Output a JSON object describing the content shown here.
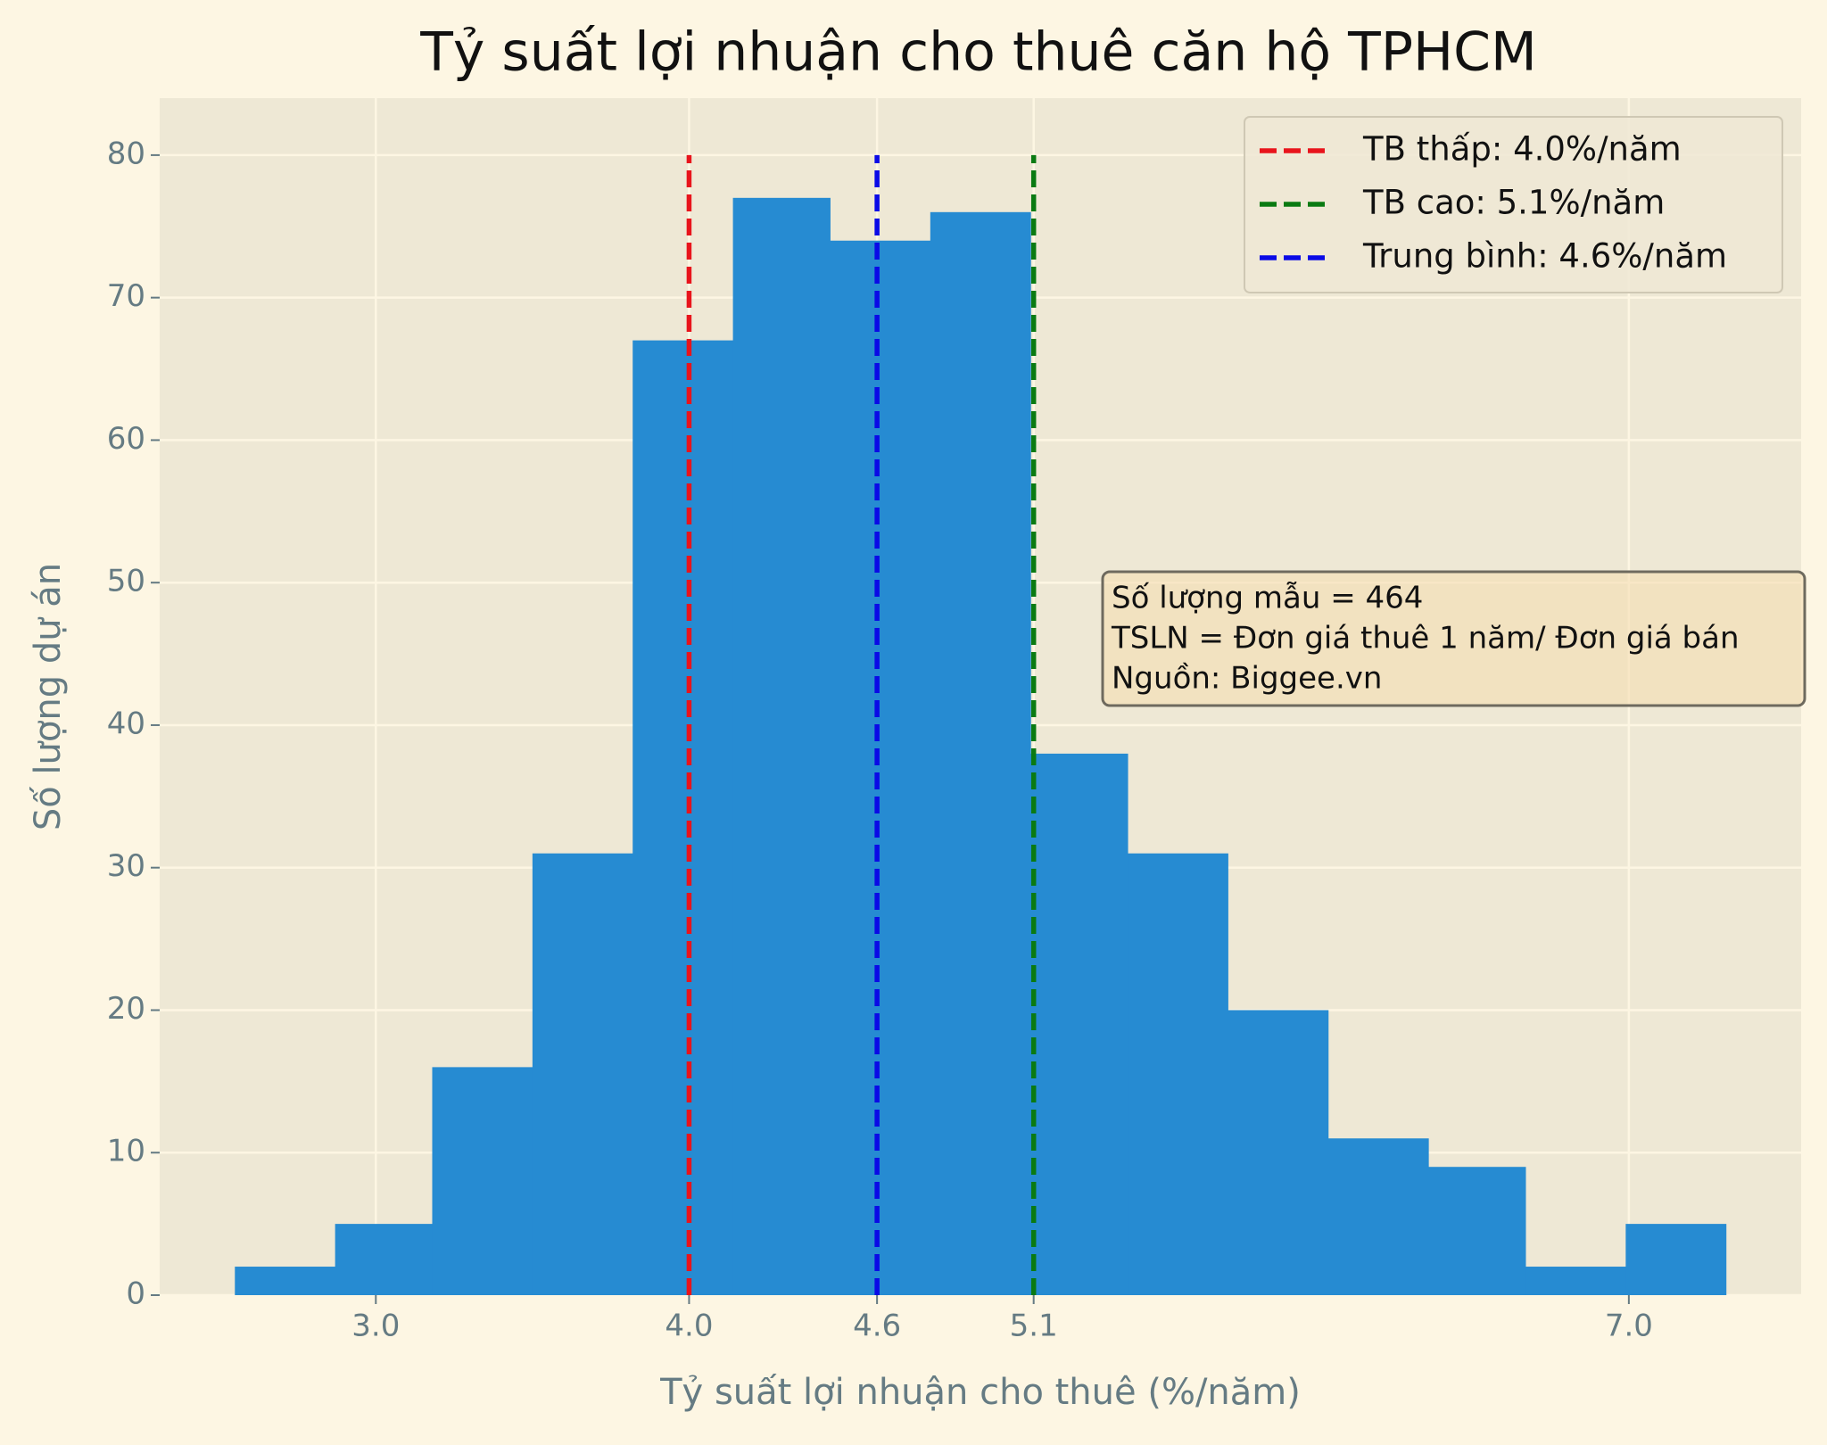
{
  "chart_data": {
    "type": "histogram",
    "title": "Tỷ suất lợi nhuận cho thuê căn hộ TPHCM",
    "xlabel": "Tỷ suất lợi nhuận cho thuê (%/năm)",
    "ylabel": "Số lượng dự án",
    "bins": [
      2.55,
      2.87,
      3.18,
      3.5,
      3.82,
      4.14,
      4.45,
      4.77,
      5.09,
      5.4,
      5.72,
      6.04,
      6.36,
      6.67,
      6.99,
      7.31
    ],
    "counts": [
      2,
      5,
      16,
      31,
      67,
      77,
      74,
      76,
      38,
      31,
      20,
      11,
      9,
      2,
      5
    ],
    "color": "#268bd2",
    "xlim": [
      2.31,
      7.55
    ],
    "ylim": [
      0,
      84
    ],
    "xticks": [
      {
        "value": 3,
        "label": "3.0"
      },
      {
        "value": 4,
        "label": "4.0"
      },
      4.6,
      5.1,
      {
        "value": 7,
        "label": "7.0"
      }
    ],
    "yticks": [
      0,
      10,
      20,
      30,
      40,
      50,
      60,
      70,
      80
    ],
    "grid": true,
    "vlines": [
      {
        "x": 4,
        "ymax": 80,
        "color": "#e8141c",
        "label": "TB thấp: 4.0%/năm"
      },
      {
        "x": 5.1,
        "ymax": 80,
        "color": "#0a7a12",
        "label": "TB cao: 5.1%/năm"
      },
      {
        "x": 4.6,
        "ymax": 80,
        "color": "#0a0ae6",
        "label": "Trung bình: 4.6%/năm"
      }
    ],
    "legend": "upper right",
    "annotation": [
      "Số lượng mẫu = 464",
      "TSLN = Đơn giá thuê 1 năm/ Đơn giá bán",
      "Nguồn: Biggee.vn"
    ]
  }
}
